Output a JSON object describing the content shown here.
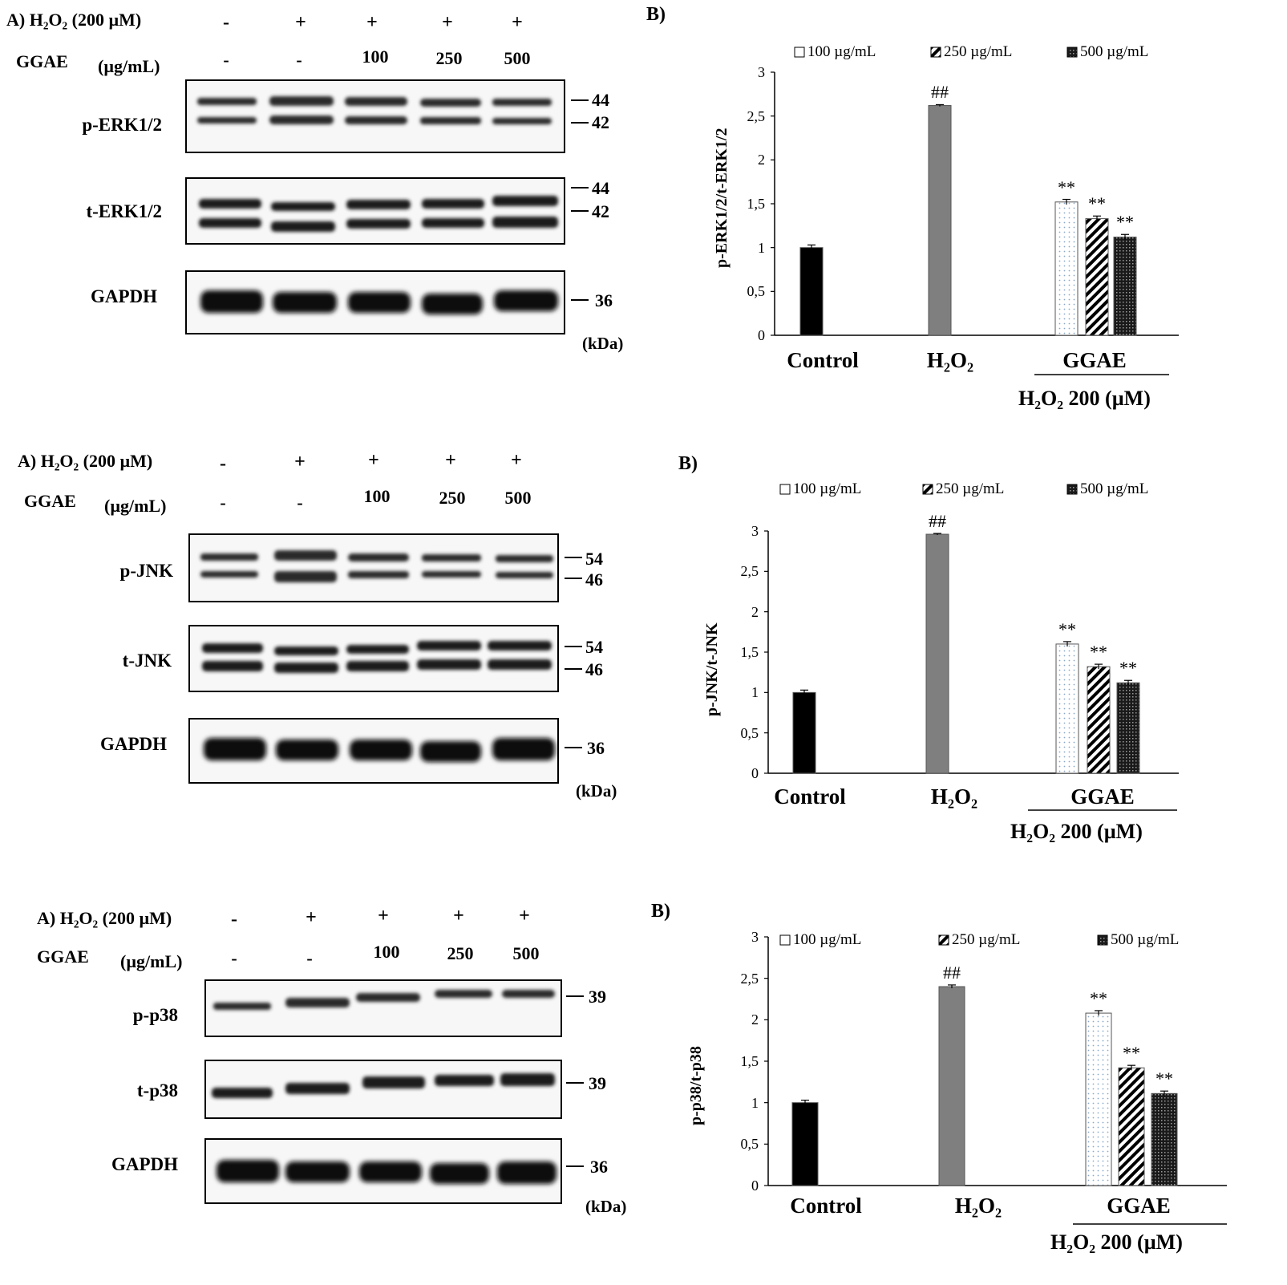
{
  "panels": [
    {
      "a_label": "A) H₂O₂ (200 µM)",
      "ggae_label": "GGAE",
      "ggae_unit": "(µg/mL)",
      "h2o2_row": [
        "-",
        "+",
        "+",
        "+",
        "+"
      ],
      "ggae_row": [
        "-",
        "-",
        "100",
        "250",
        "500"
      ],
      "blots": [
        {
          "name": "p-ERK1/2",
          "markers": [
            "44",
            "42"
          ]
        },
        {
          "name": "t-ERK1/2",
          "markers": [
            "44",
            "42"
          ]
        },
        {
          "name": "GAPDH",
          "markers": [
            "36"
          ]
        }
      ],
      "kda_unit": "(kDa)",
      "b_label": "B)"
    },
    {
      "a_label": "A) H₂O₂ (200 µM)",
      "ggae_label": "GGAE",
      "ggae_unit": "(µg/mL)",
      "h2o2_row": [
        "-",
        "+",
        "+",
        "+",
        "+"
      ],
      "ggae_row": [
        "-",
        "-",
        "100",
        "250",
        "500"
      ],
      "blots": [
        {
          "name": "p-JNK",
          "markers": [
            "54",
            "46"
          ]
        },
        {
          "name": "t-JNK",
          "markers": [
            "54",
            "46"
          ]
        },
        {
          "name": "GAPDH",
          "markers": [
            "36"
          ]
        }
      ],
      "kda_unit": "(kDa)",
      "b_label": "B)"
    },
    {
      "a_label": "A) H₂O₂ (200 µM)",
      "ggae_label": "GGAE",
      "ggae_unit": "(µg/mL)",
      "h2o2_row": [
        "-",
        "+",
        "+",
        "+",
        "+"
      ],
      "ggae_row": [
        "-",
        "-",
        "100",
        "250",
        "500"
      ],
      "blots": [
        {
          "name": "p-p38",
          "markers": [
            "39"
          ]
        },
        {
          "name": "t-p38",
          "markers": [
            "39"
          ]
        },
        {
          "name": "GAPDH",
          "markers": [
            "36"
          ]
        }
      ],
      "kda_unit": "(kDa)",
      "b_label": "B)"
    }
  ],
  "colors": {
    "control": "#000000",
    "h2o2": "#7f7f7f",
    "ggae_100": "#ffffff",
    "ggae_250_pattern": "diagonal-hatch",
    "ggae_500_pattern": "dark-crosshatch"
  },
  "chart_data": [
    {
      "type": "bar",
      "ylabel": "p-ERK1/2/t-ERK1/2",
      "xlabel": "",
      "categories": [
        "Control",
        "H₂O₂",
        "GGAE"
      ],
      "group_sublabel": "H₂O₂ 200 (µM)",
      "ylim": [
        0,
        3
      ],
      "yticks": [
        "0",
        "0,5",
        "1",
        "1,5",
        "2",
        "2,5",
        "3"
      ],
      "legend": [
        "100 µg/mL",
        "250 µg/mL",
        "500 µg/mL"
      ],
      "legend_position": "top",
      "bars": [
        {
          "category": "Control",
          "value": 1.0,
          "error": 0.03,
          "annotation": ""
        },
        {
          "category": "H₂O₂",
          "value": 2.62,
          "error": 0.01,
          "annotation": "##"
        },
        {
          "category": "GGAE",
          "series": "100 µg/mL",
          "value": 1.52,
          "error": 0.03,
          "annotation": "**"
        },
        {
          "category": "GGAE",
          "series": "250 µg/mL",
          "value": 1.33,
          "error": 0.03,
          "annotation": "**"
        },
        {
          "category": "GGAE",
          "series": "500 µg/mL",
          "value": 1.12,
          "error": 0.03,
          "annotation": "**"
        }
      ]
    },
    {
      "type": "bar",
      "ylabel": "p-JNK/t-JNK",
      "xlabel": "",
      "categories": [
        "Control",
        "H₂O₂",
        "GGAE"
      ],
      "group_sublabel": "H₂O₂ 200 (µM)",
      "ylim": [
        0,
        3
      ],
      "yticks": [
        "0",
        "0,5",
        "1",
        "1,5",
        "2",
        "2,5",
        "3"
      ],
      "legend": [
        "100 µg/mL",
        "250 µg/mL",
        "500 µg/mL"
      ],
      "legend_position": "top",
      "bars": [
        {
          "category": "Control",
          "value": 1.0,
          "error": 0.03,
          "annotation": ""
        },
        {
          "category": "H₂O₂",
          "value": 2.96,
          "error": 0.01,
          "annotation": "##"
        },
        {
          "category": "GGAE",
          "series": "100 µg/mL",
          "value": 1.6,
          "error": 0.03,
          "annotation": "**"
        },
        {
          "category": "GGAE",
          "series": "250 µg/mL",
          "value": 1.32,
          "error": 0.03,
          "annotation": "**"
        },
        {
          "category": "GGAE",
          "series": "500 µg/mL",
          "value": 1.12,
          "error": 0.03,
          "annotation": "**"
        }
      ]
    },
    {
      "type": "bar",
      "ylabel": "p-p38/t-p38",
      "xlabel": "",
      "categories": [
        "Control",
        "H₂O₂",
        "GGAE"
      ],
      "group_sublabel": "H₂O₂ 200 (µM)",
      "ylim": [
        0,
        3
      ],
      "yticks": [
        "0",
        "0,5",
        "1",
        "1,5",
        "2",
        "2,5",
        "3"
      ],
      "legend": [
        "100 µg/mL",
        "250 µg/mL",
        "500 µg/mL"
      ],
      "legend_position": "top",
      "bars": [
        {
          "category": "Control",
          "value": 1.0,
          "error": 0.03,
          "annotation": ""
        },
        {
          "category": "H₂O₂",
          "value": 2.4,
          "error": 0.02,
          "annotation": "##"
        },
        {
          "category": "GGAE",
          "series": "100 µg/mL",
          "value": 2.08,
          "error": 0.03,
          "annotation": "**"
        },
        {
          "category": "GGAE",
          "series": "250 µg/mL",
          "value": 1.42,
          "error": 0.03,
          "annotation": "**"
        },
        {
          "category": "GGAE",
          "series": "500 µg/mL",
          "value": 1.11,
          "error": 0.03,
          "annotation": "**"
        }
      ]
    }
  ]
}
